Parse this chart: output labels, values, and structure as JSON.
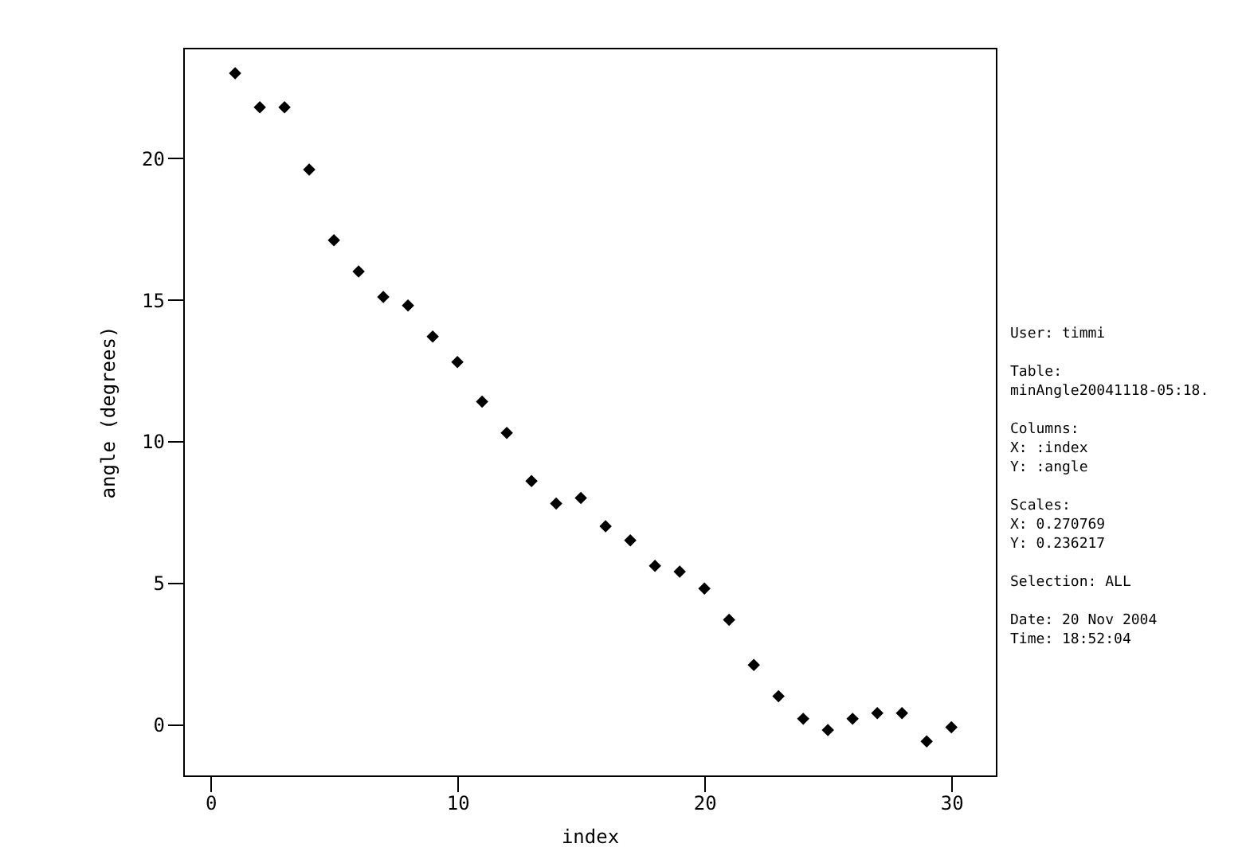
{
  "chart_data": {
    "type": "scatter",
    "xlabel": "index",
    "ylabel": "angle (degrees)",
    "x": [
      1,
      2,
      3,
      4,
      5,
      6,
      7,
      8,
      9,
      10,
      11,
      12,
      13,
      14,
      15,
      16,
      17,
      18,
      19,
      20,
      21,
      22,
      23,
      24,
      25,
      26,
      27,
      28,
      29,
      30
    ],
    "series": [
      {
        "color": "#000000",
        "values": [
          23.0,
          21.8,
          21.8,
          19.6,
          17.1,
          16.0,
          15.1,
          14.8,
          13.7,
          12.8,
          11.4,
          10.3,
          8.6,
          7.8,
          8.0,
          7.0,
          6.5,
          5.6,
          5.4,
          4.8,
          3.7,
          2.1,
          1.0,
          0.2,
          -0.2,
          0.2,
          0.4,
          0.4,
          -0.6,
          -0.1
        ]
      }
    ],
    "marker": "diamond",
    "xlim": [
      -1.1,
      31.8
    ],
    "xticks": [
      0,
      10,
      20,
      30
    ],
    "ylim": [
      -1.8,
      23.9
    ],
    "yticks": [
      0,
      5,
      10,
      15,
      20
    ],
    "grid": false,
    "legend": false,
    "annotations": [
      "User: timmi",
      "Table:\nminAngle20041118-05:18.",
      "Columns:\nX: :index\nY: :angle",
      "Scales:\nX: 0.270769\nY: 0.236217",
      "Selection:  ALL",
      "Date: 20 Nov 2004\nTime: 18:52:04"
    ]
  }
}
